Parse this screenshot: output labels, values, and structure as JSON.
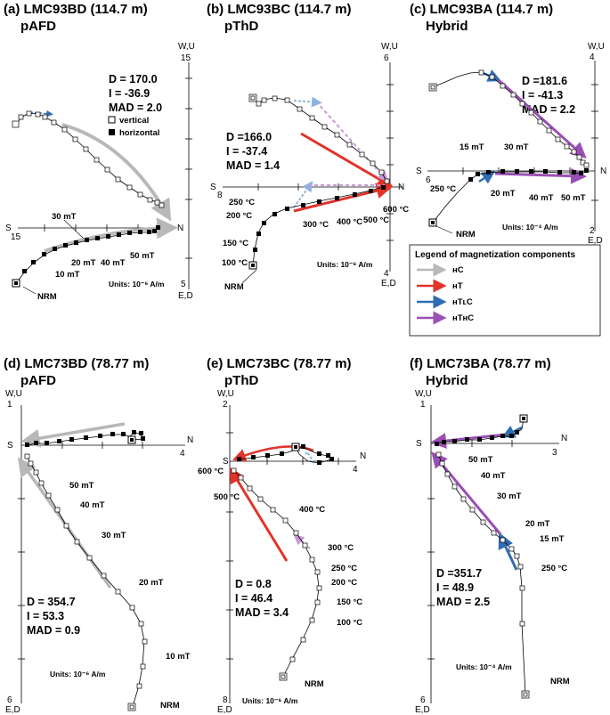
{
  "panels": [
    {
      "id": "a",
      "title": "(a) LMC93BD (114.7 m)",
      "method": "pAFD",
      "axis": {
        "up": "W,U",
        "down": "E,D",
        "left": "S",
        "right": "N",
        "top_value": "15",
        "bottom_value": "5",
        "left_value": "15"
      },
      "stats": {
        "D": "D = 170.0",
        "I": "I = -36.9",
        "MAD": "MAD = 2.0"
      },
      "legend_symbols": {
        "vertical": "vertical",
        "horizontal": "horizontal"
      },
      "steps": [
        "30 mT",
        "20 mT",
        "10 mT",
        "40 mT",
        "50 mT",
        "NRM"
      ],
      "units": "Units: 10⁻⁶ A/m"
    },
    {
      "id": "b",
      "title": "(b) LMC93BC (114.7 m)",
      "method": "pThD",
      "axis": {
        "up": "W,U",
        "down": "E,D",
        "left": "S",
        "right": "N",
        "top_value": "6",
        "bottom_value": "4",
        "left_value": "8"
      },
      "stats": {
        "D": "D =166.0",
        "I": "I = -37.4",
        "MAD": "MAD = 1.4"
      },
      "steps": [
        "250 °C",
        "200 °C",
        "150 °C",
        "100 °C",
        "300 °C",
        "400 °C",
        "500 °C",
        "600 °C",
        "NRM"
      ],
      "units": "Units: 10⁻⁶ A/m"
    },
    {
      "id": "c",
      "title": "(c) LMC93BA (114.7 m)",
      "method": "Hybrid",
      "axis": {
        "up": "W,U",
        "down": "E,D",
        "left": "S",
        "right": "N",
        "top_value": "4",
        "bottom_value": "2",
        "left_value": "6"
      },
      "stats": {
        "D": "D =181.6",
        "I": "I = -41.3",
        "MAD": "MAD = 2.2"
      },
      "steps": [
        "15 mT",
        "30 mT",
        "250 °C",
        "20 mT",
        "40 mT",
        "50 mT",
        "NRM"
      ],
      "units": "Units: 10⁻⁴ A/m"
    },
    {
      "id": "d",
      "title": "(d) LMC73BD (78.77 m)",
      "method": "pAFD",
      "axis": {
        "up": "W,U",
        "down": "E,D",
        "left": "S",
        "right": "N",
        "top_value": "1",
        "bottom_value": "6",
        "right_value": "4"
      },
      "stats": {
        "D": "D = 354.7",
        "I": "I = 53.3",
        "MAD": "MAD = 0.9"
      },
      "steps": [
        "50 mT",
        "40 mT",
        "30 mT",
        "20 mT",
        "10 mT",
        "NRM"
      ],
      "units": "Units: 10⁻⁶ A/m"
    },
    {
      "id": "e",
      "title": "(e) LMC73BC (78.77 m)",
      "method": "pThD",
      "axis": {
        "up": "W,U",
        "down": "E,D",
        "left": "S",
        "right": "N",
        "top_value": "2",
        "bottom_value": "8",
        "right_value": "4"
      },
      "stats": {
        "D": "D = 0.8",
        "I": "I = 46.4",
        "MAD": "MAD = 3.4"
      },
      "steps": [
        "600 °C",
        "500 °C",
        "400 °C",
        "300 °C",
        "250 °C",
        "200 °C",
        "150 °C",
        "100 °C",
        "NRM"
      ],
      "units": "Units: 10⁻⁶ A/m"
    },
    {
      "id": "f",
      "title": "(f) LMC73BA (78.77 m)",
      "method": "Hybrid",
      "axis": {
        "up": "W,U",
        "down": "E,D",
        "left": "S",
        "right": "N",
        "top_value": "1",
        "bottom_value": "6",
        "right_value": "3"
      },
      "stats": {
        "D": "D =351.7",
        "I": "I = 48.9",
        "MAD": "MAD = 2.5"
      },
      "steps": [
        "50 mT",
        "40 mT",
        "30 mT",
        "20 mT",
        "15 mT",
        "250 °C",
        "NRM"
      ],
      "units": "Units: 10⁻⁴ A/m"
    }
  ],
  "legend": {
    "title": "Legend of magnetization components",
    "items": [
      {
        "label": "ʜC",
        "color": "#b8b8b8"
      },
      {
        "label": "ʜT",
        "color": "#e2332a"
      },
      {
        "label": "ʜTʟC",
        "color": "#2f6db5"
      },
      {
        "label": "ʜTʜC",
        "color": "#9b4fb5"
      }
    ]
  }
}
